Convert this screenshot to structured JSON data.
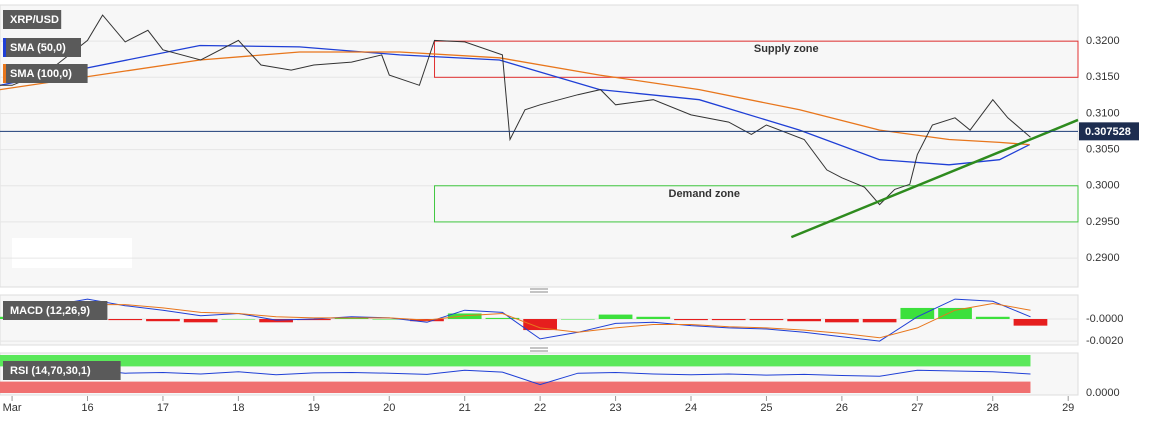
{
  "chart_data": [
    {
      "type": "line",
      "x": [
        14.84,
        15.0,
        15.5,
        16.0,
        16.2,
        16.5,
        16.8,
        17.0,
        17.5,
        18.0,
        18.3,
        18.7,
        19.0,
        19.5,
        19.9,
        20.0,
        20.4,
        20.6,
        21.0,
        21.5,
        21.6,
        21.8,
        22.0,
        22.5,
        22.8,
        23.0,
        23.5,
        24.0,
        24.5,
        24.8,
        25.0,
        25.5,
        25.8,
        26.0,
        26.3,
        26.5,
        26.7,
        26.9,
        27.0,
        27.2,
        27.5,
        27.7,
        28.0,
        28.2,
        28.5
      ],
      "series": [
        {
          "name": "XRP/USD",
          "color": "#333333",
          "values": [
            0.3139,
            0.3139,
            0.316,
            0.3201,
            0.3236,
            0.3199,
            0.3215,
            0.3188,
            0.3174,
            0.3201,
            0.3167,
            0.316,
            0.3167,
            0.3171,
            0.3181,
            0.3153,
            0.3139,
            0.3201,
            0.3199,
            0.3181,
            0.3064,
            0.3105,
            0.3112,
            0.3126,
            0.3133,
            0.3112,
            0.3119,
            0.3098,
            0.3088,
            0.3071,
            0.3084,
            0.3064,
            0.3022,
            0.3011,
            0.2998,
            0.2974,
            0.2995,
            0.3002,
            0.3043,
            0.3084,
            0.3094,
            0.3077,
            0.3119,
            0.3094,
            0.3067
          ]
        }
      ],
      "overlays": [
        {
          "name": "SMA (50,0)",
          "color": "#1f3fd6",
          "x": [
            14.84,
            17.49,
            18.81,
            20.14,
            21.46,
            22.79,
            24.11,
            25.44,
            26.5,
            27.42,
            28.09,
            28.49
          ],
          "values": [
            0.3139,
            0.3194,
            0.3192,
            0.3181,
            0.3174,
            0.3133,
            0.3119,
            0.3077,
            0.3036,
            0.3029,
            0.3036,
            0.3057
          ]
        },
        {
          "name": "SMA (100,0)",
          "color": "#e8761c",
          "x": [
            14.84,
            17.49,
            18.81,
            20.14,
            21.46,
            22.79,
            24.11,
            25.44,
            26.5,
            27.42,
            28.09,
            28.49
          ],
          "values": [
            0.3133,
            0.3174,
            0.3185,
            0.3185,
            0.3177,
            0.3153,
            0.3133,
            0.3105,
            0.3077,
            0.3064,
            0.306,
            0.3057
          ]
        }
      ],
      "zones": [
        {
          "name": "Supply zone",
          "from": 0.315,
          "to": 0.32,
          "start": 20.6,
          "color": "#e03030"
        },
        {
          "name": "Demand zone",
          "from": 0.295,
          "to": 0.3,
          "start": 20.6,
          "color": "#40c840"
        }
      ],
      "trendline": {
        "x": [
          25.33,
          29.13
        ],
        "y": [
          0.2929,
          0.3091
        ],
        "color": "#2e8b1e"
      },
      "last_price": 0.307528,
      "xlim": [
        14.84,
        29.13
      ],
      "xticks": [
        {
          "value": 15,
          "label": "Mar"
        },
        16,
        17,
        18,
        19,
        20,
        21,
        22,
        23,
        24,
        25,
        26,
        27,
        28,
        29
      ],
      "ylim": [
        0.286,
        0.325
      ],
      "yticks": [
        {
          "value": 0.29,
          "label": "0.2900"
        },
        {
          "value": 0.295,
          "label": "0.2950"
        },
        {
          "value": 0.3,
          "label": "0.3000"
        },
        {
          "value": 0.305,
          "label": "0.3050"
        },
        {
          "value": 0.31,
          "label": "0.3100"
        },
        {
          "value": 0.315,
          "label": "0.3150"
        },
        {
          "value": 0.32,
          "label": "0.3200"
        }
      ],
      "grid": true
    },
    {
      "type": "macd",
      "title": "MACD (12,26,9)",
      "x": [
        15,
        15.5,
        16,
        16.5,
        17,
        17.5,
        18,
        18.5,
        19,
        19.5,
        20,
        20.5,
        21,
        21.5,
        22,
        22.5,
        23,
        23.5,
        24,
        24.5,
        25,
        25.5,
        26,
        26.5,
        27,
        27.5,
        28,
        28.5
      ],
      "series": [
        {
          "color": "#1f3fd6",
          "values": [
            0.0005,
            0.0012,
            0.0018,
            0.0012,
            0.0008,
            0.0003,
            0.0005,
            -0.0001,
            0.0,
            0.0002,
            0.0001,
            -0.0003,
            0.0008,
            0.0006,
            -0.0018,
            -0.0012,
            -0.0004,
            -0.0003,
            -0.0006,
            -0.0008,
            -0.0009,
            -0.0012,
            -0.0016,
            -0.002,
            0.0002,
            0.0018,
            0.0016,
            0.0002
          ]
        },
        {
          "color": "#e8761c",
          "values": [
            0.0003,
            0.0008,
            0.0013,
            0.0013,
            0.001,
            0.0006,
            0.0005,
            0.0002,
            0.0001,
            0.0001,
            0.0001,
            -0.0001,
            0.0003,
            0.0005,
            -0.0008,
            -0.0012,
            -0.0008,
            -0.0005,
            -0.0005,
            -0.0007,
            -0.0008,
            -0.001,
            -0.0013,
            -0.0017,
            -0.0008,
            0.0008,
            0.0014,
            0.0008
          ]
        }
      ],
      "histogram": [
        0.0002,
        0.0004,
        0.0005,
        -0.0001,
        -0.0002,
        -0.0003,
        0.0,
        -0.0003,
        -0.0001,
        0.0001,
        0.0,
        -0.0002,
        0.0005,
        0.0001,
        -0.001,
        0.0,
        0.0004,
        0.0002,
        -0.0001,
        -0.0001,
        -0.0001,
        -0.0002,
        -0.0003,
        -0.0003,
        0.001,
        0.001,
        0.0002,
        -0.0006
      ],
      "colors": {
        "positive": "#3ce03c",
        "negative": "#e61e1e"
      },
      "ylim": [
        -0.00235,
        0.00217
      ],
      "yticks": [
        {
          "value": -0.002,
          "label": "-0.0020"
        },
        {
          "value": 0,
          "label": "-0.0000"
        }
      ],
      "grid": true
    },
    {
      "type": "rsi",
      "title": "RSI (14,70,30,1)",
      "x": [
        15,
        15.5,
        16,
        16.5,
        17,
        17.5,
        18,
        18.5,
        19,
        19.5,
        20,
        20.5,
        21,
        21.5,
        22,
        22.5,
        23,
        23.5,
        24,
        24.5,
        25,
        25.5,
        26,
        26.5,
        27,
        27.5,
        28,
        28.5
      ],
      "series": [
        {
          "color": "#1f3fd6",
          "values": [
            55,
            58,
            62,
            52,
            54,
            50,
            56,
            48,
            53,
            54,
            52,
            49,
            60,
            55,
            22,
            52,
            54,
            50,
            48,
            50,
            47,
            49,
            46,
            44,
            60,
            58,
            56,
            50
          ]
        }
      ],
      "upper_band": 70,
      "lower_band": 30,
      "band_colors": {
        "upper": "#5ae85a",
        "lower": "#f07070"
      },
      "ylim": [
        0,
        100
      ],
      "yticks": [
        {
          "value": 0,
          "label": "0.0000"
        }
      ],
      "grid": false
    }
  ]
}
